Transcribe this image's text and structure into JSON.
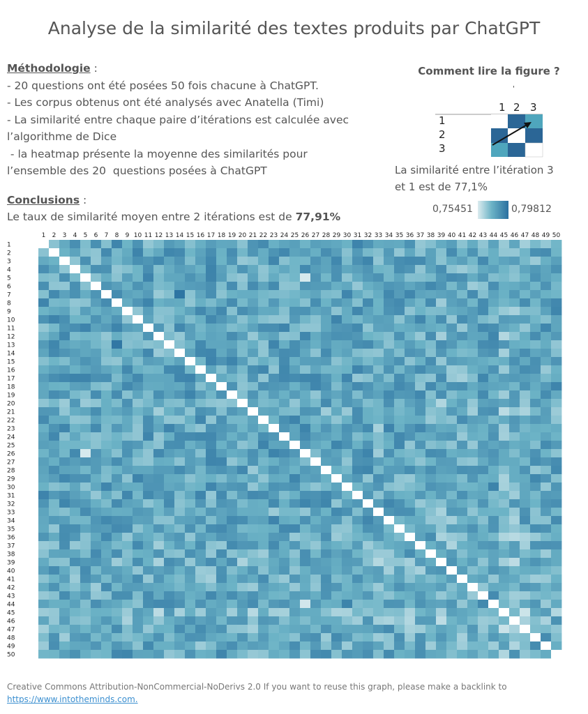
{
  "title": "Analyse de la similarité des textes produits par ChatGPT",
  "methodology": {
    "heading": "Méthodologie",
    "heading_suffix": " :",
    "lines": [
      "- 20 questions ont été posées 50 fois chacune à ChatGPT.",
      "- Les corpus obtenus ont été analysés avec Anatella (Timi)",
      "- La similarité entre chaque paire d’itérations est calculée avec",
      "l’algorithme de Dice",
      " - la heatmap présente la moyenne des similarités pour",
      "l’ensemble des 20  questions posées à ChatGPT"
    ]
  },
  "conclusions": {
    "heading": "Conclusions",
    "heading_suffix": " :",
    "text": "Le taux de similarité moyen entre 2 itérations est de ",
    "value": "77,91%"
  },
  "how_to_read": {
    "title": "Comment lire la figure ?",
    "tick": "'",
    "columns": [
      "1",
      "2",
      "3"
    ],
    "rows": [
      "1",
      "2",
      "3"
    ],
    "caption_line1": "La similarité entre l’itération 3",
    "caption_line2": "et 1 est de 77,1%"
  },
  "legend": {
    "min_label": "0,75451",
    "max_label": "0,79812",
    "min_value": 0.75451,
    "max_value": 0.79812,
    "color_low": "#dcecef",
    "color_mid": "#6cb3c6",
    "color_high": "#2a70a0"
  },
  "chart_data": {
    "type": "heatmap",
    "title": "",
    "xlabel": "",
    "ylabel": "",
    "x_categories": [
      "1",
      "2",
      "3",
      "4",
      "5",
      "6",
      "7",
      "8",
      "9",
      "10",
      "11",
      "12",
      "13",
      "14",
      "15",
      "16",
      "17",
      "18",
      "19",
      "20",
      "21",
      "22",
      "23",
      "24",
      "25",
      "26",
      "27",
      "28",
      "29",
      "30",
      "31",
      "32",
      "33",
      "34",
      "35",
      "36",
      "37",
      "38",
      "39",
      "40",
      "41",
      "42",
      "43",
      "44",
      "45",
      "46",
      "47",
      "48",
      "49",
      "50"
    ],
    "y_categories": [
      "1",
      "2",
      "3",
      "4",
      "5",
      "6",
      "7",
      "8",
      "9",
      "10",
      "11",
      "12",
      "13",
      "14",
      "15",
      "16",
      "17",
      "18",
      "19",
      "20",
      "21",
      "22",
      "23",
      "24",
      "25",
      "26",
      "27",
      "28",
      "29",
      "30",
      "31",
      "32",
      "33",
      "34",
      "35",
      "36",
      "37",
      "38",
      "39",
      "40",
      "41",
      "42",
      "43",
      "44",
      "45",
      "46",
      "47",
      "48",
      "49",
      "50"
    ],
    "value_range": [
      0.75451,
      0.79812
    ],
    "mean": 0.7791,
    "diagonal": "blank",
    "row_offsets": {
      "20": -0.002,
      "21": -0.002,
      "36": -0.002,
      "37": -0.002,
      "38": -0.002,
      "39": -0.002,
      "40": -0.002,
      "41": -0.002,
      "42": -0.002,
      "43": -0.002,
      "45": -0.005,
      "46": -0.003,
      "47": -0.002,
      "48": -0.002,
      "49": -0.002
    },
    "col_offsets": {
      "12": -0.002,
      "33": -0.004,
      "39": -0.002,
      "40": -0.002,
      "41": -0.002,
      "42": -0.002,
      "45": -0.004,
      "46": -0.003,
      "47": -0.002
    },
    "cell_overrides": [
      {
        "row": 5,
        "col": 26,
        "value": 0.7555
      },
      {
        "row": 26,
        "col": 5,
        "value": 0.7555
      },
      {
        "row": 7,
        "col": 14,
        "value": 0.7965
      },
      {
        "row": 13,
        "col": 8,
        "value": 0.7955
      },
      {
        "row": 44,
        "col": 26,
        "value": 0.7565
      }
    ]
  },
  "footer": {
    "license": "Creative Commons Attribution-NonCommercial-NoDerivs 2.0 If you want to reuse this graph, please make a backlink to",
    "link": "https://www.intotheminds.com."
  }
}
